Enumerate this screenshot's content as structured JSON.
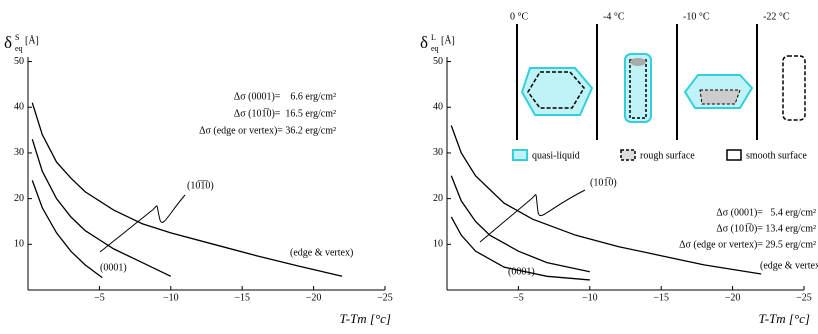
{
  "chart_data": [
    {
      "type": "line",
      "y_label": {
        "symbol": "δ",
        "sup": "S",
        "sub": "eq",
        "unit": "[Å]"
      },
      "x_label": "T-Tm  [°c]",
      "xlim": [
        0,
        -25
      ],
      "ylim": [
        0,
        51
      ],
      "xticks": [
        {
          "value": -5,
          "label": "−5"
        },
        {
          "value": -10,
          "label": "−10"
        },
        {
          "value": -15,
          "label": "−15"
        },
        {
          "value": -20,
          "label": "−20"
        },
        {
          "value": -25,
          "label": "−25"
        }
      ],
      "yticks": [
        10,
        20,
        30,
        40,
        50
      ],
      "series": [
        {
          "name": "(0001)",
          "color": "#000000",
          "x": [
            -0.3,
            -1,
            -2,
            -3,
            -4,
            -5.2
          ],
          "values": [
            24,
            18,
            12.5,
            8.5,
            5.5,
            2.7
          ]
        },
        {
          "name": "(10̅1̅0)",
          "color": "#000000",
          "x": [
            -0.3,
            -1,
            -2,
            -3,
            -4,
            -5,
            -6,
            -8,
            -10
          ],
          "values": [
            33,
            26,
            20,
            16,
            13,
            11,
            9,
            6,
            3
          ]
        },
        {
          "name": "(edge & vertex)",
          "color": "#000000",
          "x": [
            -0.3,
            -1,
            -2,
            -3,
            -4,
            -6,
            -8,
            -10,
            -13,
            -16,
            -19,
            -22
          ],
          "values": [
            41,
            34,
            28,
            24.5,
            21.5,
            17.5,
            14.5,
            12.5,
            10,
            7.5,
            5.2,
            3
          ]
        }
      ],
      "annotations": [
        "Δσ (0001)=    6.6 erg/cm²",
        "Δσ (101̅0)=  16.5 erg/cm²",
        "Δσ (edge or vertex)= 36.2 erg/cm²"
      ]
    },
    {
      "type": "line",
      "y_label": {
        "symbol": "δ",
        "sup": "L",
        "sub": "eq",
        "unit": "[Å]"
      },
      "x_label": "T-Tm  [°c]",
      "xlim": [
        0,
        -25
      ],
      "ylim": [
        0,
        51
      ],
      "xticks": [
        {
          "value": -5,
          "label": "−5"
        },
        {
          "value": -10,
          "label": "−10"
        },
        {
          "value": -15,
          "label": "−15"
        },
        {
          "value": -20,
          "label": "−20"
        },
        {
          "value": -25,
          "label": "−25"
        }
      ],
      "yticks": [
        10,
        20,
        30,
        40,
        50
      ],
      "series": [
        {
          "name": "(0001)",
          "color": "#000000",
          "x": [
            -0.3,
            -1,
            -2,
            -4,
            -7,
            -10
          ],
          "values": [
            16,
            12,
            8.5,
            5,
            3,
            2.2
          ]
        },
        {
          "name": "(101̅0)",
          "color": "#000000",
          "x": [
            -0.3,
            -1,
            -2,
            -3,
            -5,
            -7,
            -10
          ],
          "values": [
            25,
            19.5,
            15,
            12,
            8.5,
            6,
            4
          ]
        },
        {
          "name": "(edge & vertex)",
          "color": "#000000",
          "x": [
            -0.3,
            -1,
            -2,
            -4,
            -6,
            -9,
            -12,
            -15,
            -18,
            -22
          ],
          "values": [
            36,
            30,
            25,
            19,
            15.5,
            12,
            9.5,
            7.5,
            5.5,
            3.5
          ]
        }
      ],
      "annotations": [
        "Δσ (0001)=   5.4 erg/cm²",
        "Δσ (101̅0)= 13.4 erg/cm²",
        "Δσ (edge or vertex)= 29.5 erg/cm²"
      ],
      "inset": {
        "temperatures": [
          "0 °C",
          "-4 °C",
          "-10 °C",
          "-22 °C"
        ],
        "legend": [
          "quasi-liquid",
          "rough surface",
          "smooth surface"
        ]
      }
    }
  ]
}
